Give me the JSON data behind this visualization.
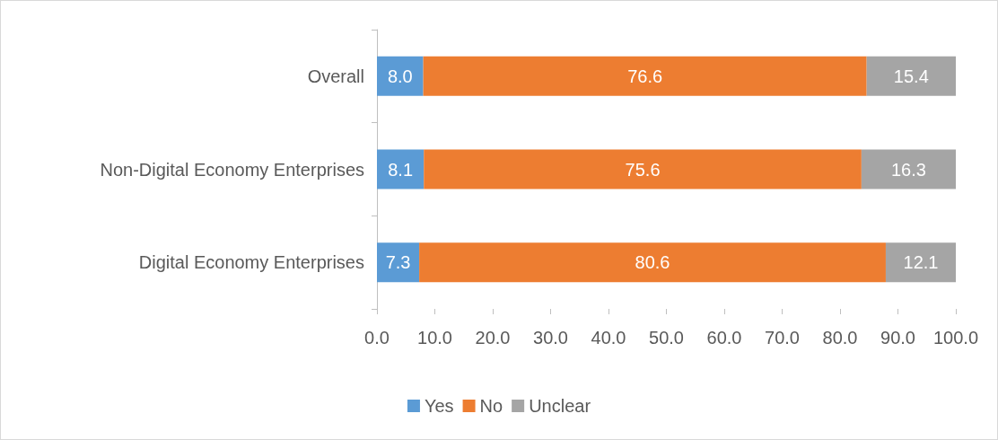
{
  "chart_data": {
    "type": "bar",
    "orientation": "horizontal",
    "stacked": true,
    "legend": "bottom",
    "grid": false,
    "categories": [
      "Overall",
      "Non-Digital Economy Enterprises",
      "Digital Economy Enterprises"
    ],
    "series": [
      {
        "name": "Yes",
        "color": "#5b9bd5",
        "values": [
          8.0,
          8.1,
          7.3
        ],
        "value_labels": [
          "8.0",
          "8.1",
          "7.3"
        ]
      },
      {
        "name": "No",
        "color": "#ed7d31",
        "values": [
          76.6,
          75.6,
          80.6
        ],
        "value_labels": [
          "76.6",
          "75.6",
          "80.6"
        ]
      },
      {
        "name": "Unclear",
        "color": "#a5a5a5",
        "values": [
          15.4,
          16.3,
          12.1
        ],
        "value_labels": [
          "15.4",
          "16.3",
          "12.1"
        ]
      }
    ],
    "xlim": [
      0,
      100
    ],
    "xticks": [
      {
        "value": 0,
        "label": "0.0"
      },
      {
        "value": 10,
        "label": "10.0"
      },
      {
        "value": 20,
        "label": "20.0"
      },
      {
        "value": 30,
        "label": "30.0"
      },
      {
        "value": 40,
        "label": "40.0"
      },
      {
        "value": 50,
        "label": "50.0"
      },
      {
        "value": 60,
        "label": "60.0"
      },
      {
        "value": 70,
        "label": "70.0"
      },
      {
        "value": 80,
        "label": "80.0"
      },
      {
        "value": 90,
        "label": "90.0"
      },
      {
        "value": 100,
        "label": "100.0"
      }
    ]
  }
}
